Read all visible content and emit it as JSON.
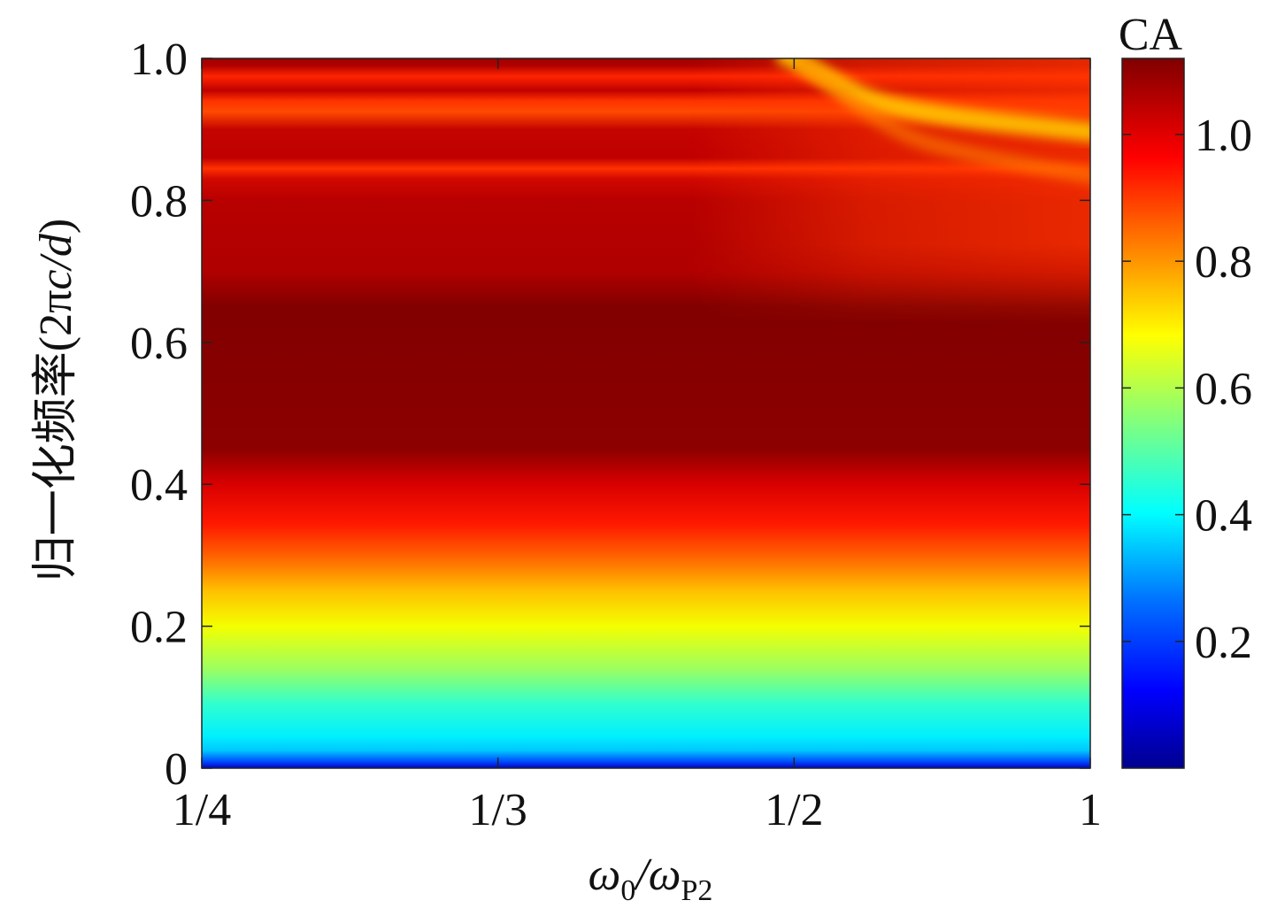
{
  "chart_data": {
    "type": "heatmap",
    "title": "",
    "xlabel": {
      "main": "ω",
      "sub1": "0",
      "slash": "/ω",
      "sub2": "P2"
    },
    "ylabel": {
      "main": "归一化频率(2π",
      "italic": "c/d",
      "close": ")"
    },
    "x_categories": [
      "1/4",
      "1/3",
      "1/2",
      "1"
    ],
    "x_tick_labels": [
      "1/4",
      "1/3",
      "1/2",
      "1"
    ],
    "ylim": [
      0,
      1.0
    ],
    "y_ticks": [
      0,
      0.2,
      0.4,
      0.6,
      0.8,
      1.0
    ],
    "y_tick_labels": [
      "0",
      "0.2",
      "0.4",
      "0.6",
      "0.8",
      "1.0"
    ],
    "colorbar": {
      "title": "CA",
      "range": [
        0,
        1.12
      ],
      "ticks": [
        0.2,
        0.4,
        0.6,
        0.8,
        1.0
      ],
      "tick_labels": [
        "0.2",
        "0.4",
        "0.6",
        "0.8",
        "1.0"
      ],
      "colormap": "jet"
    },
    "value_profile_vs_y": [
      {
        "y": 0.0,
        "ca": 0.05
      },
      {
        "y": 0.02,
        "ca": 0.32
      },
      {
        "y": 0.04,
        "ca": 0.42
      },
      {
        "y": 0.08,
        "ca": 0.5
      },
      {
        "y": 0.14,
        "ca": 0.6
      },
      {
        "y": 0.2,
        "ca": 0.7
      },
      {
        "y": 0.25,
        "ca": 0.8
      },
      {
        "y": 0.3,
        "ca": 0.93
      },
      {
        "y": 0.35,
        "ca": 1.0
      },
      {
        "y": 0.4,
        "ca": 1.06
      },
      {
        "y": 0.45,
        "ca": 1.1
      },
      {
        "y": 0.65,
        "ca": 1.11
      },
      {
        "y": 0.7,
        "ca": 1.06
      },
      {
        "y": 0.75,
        "ca": 1.05
      },
      {
        "y": 0.8,
        "ca": 1.05
      },
      {
        "y": 0.84,
        "ca": 0.97
      },
      {
        "y": 0.86,
        "ca": 1.05
      },
      {
        "y": 0.9,
        "ca": 1.03
      },
      {
        "y": 0.93,
        "ca": 0.9
      },
      {
        "y": 0.95,
        "ca": 1.05
      },
      {
        "y": 0.97,
        "ca": 0.95
      },
      {
        "y": 1.0,
        "ca": 1.08
      }
    ],
    "features": [
      {
        "note": "near x=1/2, y=1.0 a yellow band (CA≈0.75) curves down-right toward y≈0.9 at x=1"
      },
      {
        "note": "for x > 1/2 the upper region (y 0.7–1.0) becomes lower (CA≈0.9–1.0, orange-red)"
      }
    ]
  }
}
